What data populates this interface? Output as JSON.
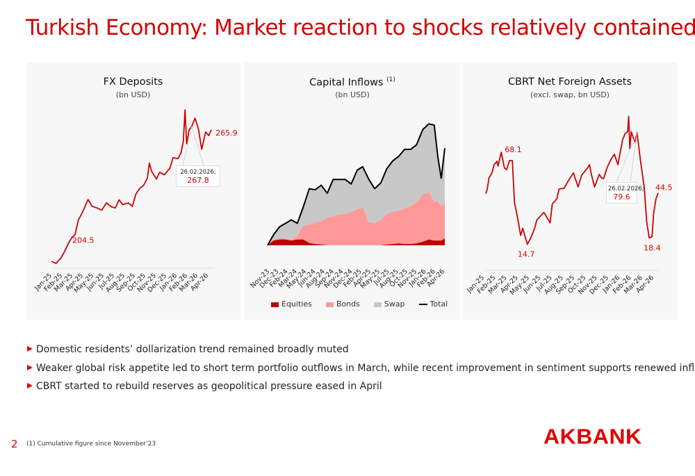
{
  "title": "Turkish Economy: Market reaction to shocks relatively contained",
  "colors": {
    "accent": "#d40000",
    "line": "#cc0000",
    "equities": "#c00000",
    "bonds": "#ff9999",
    "swap": "#c8c8c8",
    "total": "#000000",
    "panel_bg": "#f7f7f7"
  },
  "chart_data": [
    {
      "type": "line",
      "title": "FX Deposits",
      "subtitle": "(bn USD)",
      "x_ticks": [
        "Jan-25",
        "Feb-25",
        "Mar-25",
        "Apr-25",
        "May-25",
        "Jun-25",
        "Jul-25",
        "Aug-25",
        "Sep-25",
        "Oct-25",
        "Nov-25",
        "Dec-25",
        "Jan-26",
        "Feb-26",
        "Mar-26",
        "Apr-26"
      ],
      "xlim": [
        "2025-01-01",
        "2026-04-30"
      ],
      "ylim": [
        185,
        281
      ],
      "grid": false,
      "series": [
        {
          "color": "#cc0000",
          "points": [
            [
              "2025-01-01",
              188.6
            ],
            [
              "2025-01-15",
              187.4
            ],
            [
              "2025-01-30",
              190.8
            ],
            [
              "2025-02-09",
              194.3
            ],
            [
              "2025-02-22",
              199.6
            ],
            [
              "2025-03-03",
              202.5
            ],
            [
              "2025-03-13",
              204.5
            ],
            [
              "2025-03-23",
              213
            ],
            [
              "2025-04-03",
              217
            ],
            [
              "2025-04-21",
              225
            ],
            [
              "2025-05-03",
              221
            ],
            [
              "2025-05-18",
              220
            ],
            [
              "2025-06-01",
              218.7
            ],
            [
              "2025-06-15",
              223
            ],
            [
              "2025-06-29",
              220.8
            ],
            [
              "2025-07-12",
              220
            ],
            [
              "2025-07-23",
              224.8
            ],
            [
              "2025-08-03",
              222
            ],
            [
              "2025-08-20",
              223
            ],
            [
              "2025-09-01",
              221
            ],
            [
              "2025-09-11",
              228
            ],
            [
              "2025-09-22",
              231.3
            ],
            [
              "2025-10-05",
              233.4
            ],
            [
              "2025-10-16",
              237.5
            ],
            [
              "2025-10-22",
              246.4
            ],
            [
              "2025-10-29",
              241.5
            ],
            [
              "2025-11-12",
              237
            ],
            [
              "2025-11-22",
              241
            ],
            [
              "2025-12-06",
              239.5
            ],
            [
              "2025-12-23",
              243.5
            ],
            [
              "2026-01-01",
              249.6
            ],
            [
              "2026-01-16",
              249
            ],
            [
              "2026-01-25",
              252.5
            ],
            [
              "2026-02-01",
              259.4
            ],
            [
              "2026-02-06",
              277.7
            ],
            [
              "2026-02-11",
              257.8
            ],
            [
              "2026-02-18",
              265.9
            ],
            [
              "2026-02-26",
              267.8
            ],
            [
              "2026-03-08",
              272.8
            ],
            [
              "2026-03-18",
              266.7
            ],
            [
              "2026-03-28",
              254.5
            ],
            [
              "2026-04-09",
              264.7
            ],
            [
              "2026-04-18",
              262.6
            ],
            [
              "2026-04-26",
              265.9
            ]
          ]
        }
      ],
      "annotations": [
        {
          "date": "2025-03-13",
          "value": 204.5,
          "text": "204.5"
        },
        {
          "date": "2026-04-26",
          "value": 265.9,
          "text": "265.9"
        }
      ],
      "callout": {
        "date": "2026-02-26",
        "value": 267.8,
        "date_label": "26.02.2026;",
        "text": "267.8"
      }
    },
    {
      "type": "area",
      "stacked": true,
      "title": "Capital Inflows",
      "title_note": "(1)",
      "subtitle": "(bn USD)",
      "x_ticks": [
        "Nov-23",
        "Dec-23",
        "Feb-24",
        "Mar-24",
        "May-24",
        "Jun-24",
        "Aug-24",
        "Sep-24",
        "Nov-24",
        "Dec-24",
        "Feb-25",
        "Apr-25",
        "May-25",
        "Jul-25",
        "Aug-25",
        "Oct-25",
        "Nov-25",
        "Jan-26",
        "Feb-26",
        "Apr-26"
      ],
      "xlim": [
        "2023-11-01",
        "2026-04-24"
      ],
      "ylim": [
        0,
        55
      ],
      "grid": false,
      "legend_position": "bottom",
      "x": [
        "2023-11-01",
        "2023-12-01",
        "2024-01-01",
        "2024-02-01",
        "2024-03-01",
        "2024-04-01",
        "2024-05-01",
        "2024-06-01",
        "2024-07-01",
        "2024-08-01",
        "2024-09-01",
        "2024-10-01",
        "2024-11-01",
        "2024-12-01",
        "2025-01-01",
        "2025-02-01",
        "2025-03-01",
        "2025-04-01",
        "2025-05-01",
        "2025-06-01",
        "2025-07-01",
        "2025-08-01",
        "2025-09-01",
        "2025-10-01",
        "2025-11-01",
        "2025-12-01",
        "2026-01-01",
        "2026-02-01",
        "2026-03-01",
        "2026-03-20",
        "2026-04-06",
        "2026-04-24"
      ],
      "series": [
        {
          "name": "Equities",
          "color": "#c00000",
          "values": [
            0,
            2,
            2.5,
            2.5,
            2,
            2.5,
            2.5,
            1,
            0.5,
            0.3,
            0,
            0,
            0,
            0,
            0,
            0,
            0,
            0,
            0,
            0,
            0.3,
            0.5,
            0.8,
            0.5,
            0.5,
            0.8,
            1.5,
            2.5,
            2,
            2,
            2,
            3
          ]
        },
        {
          "name": "Bonds",
          "color": "#ff9999",
          "values": [
            0,
            0.5,
            0.5,
            0.5,
            0.5,
            1.5,
            6,
            8,
            9.5,
            10.2,
            12,
            12.5,
            13.5,
            13.5,
            14.5,
            15.5,
            16.5,
            10,
            9.5,
            11,
            13.2,
            14,
            14.2,
            15.5,
            16.5,
            17.7,
            20.5,
            20.5,
            17,
            17,
            15,
            15
          ]
        },
        {
          "name": "Swap",
          "color": "#c8c8c8",
          "values": [
            0,
            2,
            5,
            6.5,
            8.5,
            5.5,
            8,
            15.5,
            14,
            15.5,
            10.5,
            16,
            15,
            15,
            12,
            17,
            17.5,
            18.5,
            15,
            16,
            19.5,
            22,
            23.5,
            25.5,
            24.5,
            25,
            28,
            29.5,
            33,
            19,
            12,
            24
          ]
        },
        {
          "name": "Total",
          "color": "#000000",
          "line": true,
          "values": [
            0,
            4.5,
            8,
            9.5,
            11,
            9.5,
            16.5,
            24.5,
            24,
            26,
            22.5,
            28.5,
            28.5,
            28.5,
            26.5,
            32.5,
            34,
            28.5,
            24.5,
            27,
            33,
            36.5,
            38.5,
            41.5,
            41.5,
            43.5,
            50,
            52.5,
            52,
            38,
            29,
            42
          ]
        }
      ]
    },
    {
      "type": "line",
      "title": "CBRT Net Foreign Assets",
      "subtitle": "(excl. swap, bn USD)",
      "x_ticks": [
        "Jan-25",
        "Feb-25",
        "Mar-25",
        "Apr-25",
        "May-25",
        "Jun-25",
        "Jul-25",
        "Aug-25",
        "Sep-25",
        "Oct-25",
        "Nov-25",
        "Dec-25",
        "Jan-26",
        "Feb-26",
        "Mar-26",
        "Apr-26"
      ],
      "xlim": [
        "2025-01-01",
        "2026-04-26"
      ],
      "ylim": [
        0,
        96
      ],
      "grid": false,
      "series": [
        {
          "color": "#cc0000",
          "points": [
            [
              "2025-01-01",
              44.0
            ],
            [
              "2025-01-05",
              46.8
            ],
            [
              "2025-01-10",
              53.2
            ],
            [
              "2025-01-18",
              56.1
            ],
            [
              "2025-01-24",
              60.9
            ],
            [
              "2025-02-01",
              62.9
            ],
            [
              "2025-02-04",
              60.1
            ],
            [
              "2025-02-13",
              68.1
            ],
            [
              "2025-02-22",
              58.9
            ],
            [
              "2025-02-28",
              58.1
            ],
            [
              "2025-03-08",
              63.3
            ],
            [
              "2025-03-16",
              63.3
            ],
            [
              "2025-03-22",
              38.8
            ],
            [
              "2025-03-29",
              32
            ],
            [
              "2025-04-08",
              19.9
            ],
            [
              "2025-04-14",
              24
            ],
            [
              "2025-04-21",
              18.7
            ],
            [
              "2025-04-27",
              14.7
            ],
            [
              "2025-05-07",
              18.7
            ],
            [
              "2025-05-17",
              24
            ],
            [
              "2025-05-23",
              28.8
            ],
            [
              "2025-06-06",
              32
            ],
            [
              "2025-06-12",
              33.2
            ],
            [
              "2025-06-29",
              27.1
            ],
            [
              "2025-07-05",
              38
            ],
            [
              "2025-07-18",
              41.2
            ],
            [
              "2025-07-24",
              46.8
            ],
            [
              "2025-08-07",
              47.2
            ],
            [
              "2025-08-20",
              52
            ],
            [
              "2025-09-02",
              56.1
            ],
            [
              "2025-09-15",
              48
            ],
            [
              "2025-09-25",
              54.9
            ],
            [
              "2025-10-11",
              58.9
            ],
            [
              "2025-10-17",
              60.9
            ],
            [
              "2025-10-21",
              56.1
            ],
            [
              "2025-10-31",
              48
            ],
            [
              "2025-11-13",
              55.3
            ],
            [
              "2025-11-19",
              53.2
            ],
            [
              "2025-11-25",
              52.8
            ],
            [
              "2025-12-05",
              59.3
            ],
            [
              "2025-12-16",
              64.1
            ],
            [
              "2025-12-25",
              66.9
            ],
            [
              "2026-01-04",
              60.9
            ],
            [
              "2026-01-17",
              75.3
            ],
            [
              "2026-01-24",
              79
            ],
            [
              "2026-01-31",
              80.1
            ],
            [
              "2026-02-03",
              89
            ],
            [
              "2026-02-06",
              70.1
            ],
            [
              "2026-02-10",
              80.1
            ],
            [
              "2026-02-15",
              76.9
            ],
            [
              "2026-02-21",
              74.1
            ],
            [
              "2026-02-26",
              79.6
            ],
            [
              "2026-03-08",
              62.9
            ],
            [
              "2026-03-18",
              48
            ],
            [
              "2026-03-25",
              28
            ],
            [
              "2026-04-01",
              18.4
            ],
            [
              "2026-04-09",
              19.1
            ],
            [
              "2026-04-13",
              32
            ],
            [
              "2026-04-20",
              41.2
            ],
            [
              "2026-04-26",
              44.5
            ]
          ]
        }
      ],
      "annotations": [
        {
          "date": "2025-02-13",
          "value": 68.1,
          "text": "68.1"
        },
        {
          "date": "2025-04-27",
          "value": 14.7,
          "text": "14.7"
        },
        {
          "date": "2026-04-01",
          "value": 18.4,
          "text": "18.4"
        },
        {
          "date": "2026-04-26",
          "value": 44.5,
          "text": "44.5"
        }
      ],
      "callout": {
        "date": "2026-02-26",
        "value": 79.6,
        "date_label": "26.02.2026;",
        "text": "79.6"
      }
    }
  ],
  "bullets": [
    "Domestic residents’ dollarization trend remained broadly muted",
    "Weaker global risk appetite led to short term portfolio outflows in March, while recent improvement in sentiment supports renewed inflows",
    "CBRT started to rebuild reserves as geopolitical pressure eased in April"
  ],
  "footer": {
    "page_number": "2",
    "footnote": "(1) Cumulative figure since November’23",
    "logo_text": "AKBANK"
  }
}
